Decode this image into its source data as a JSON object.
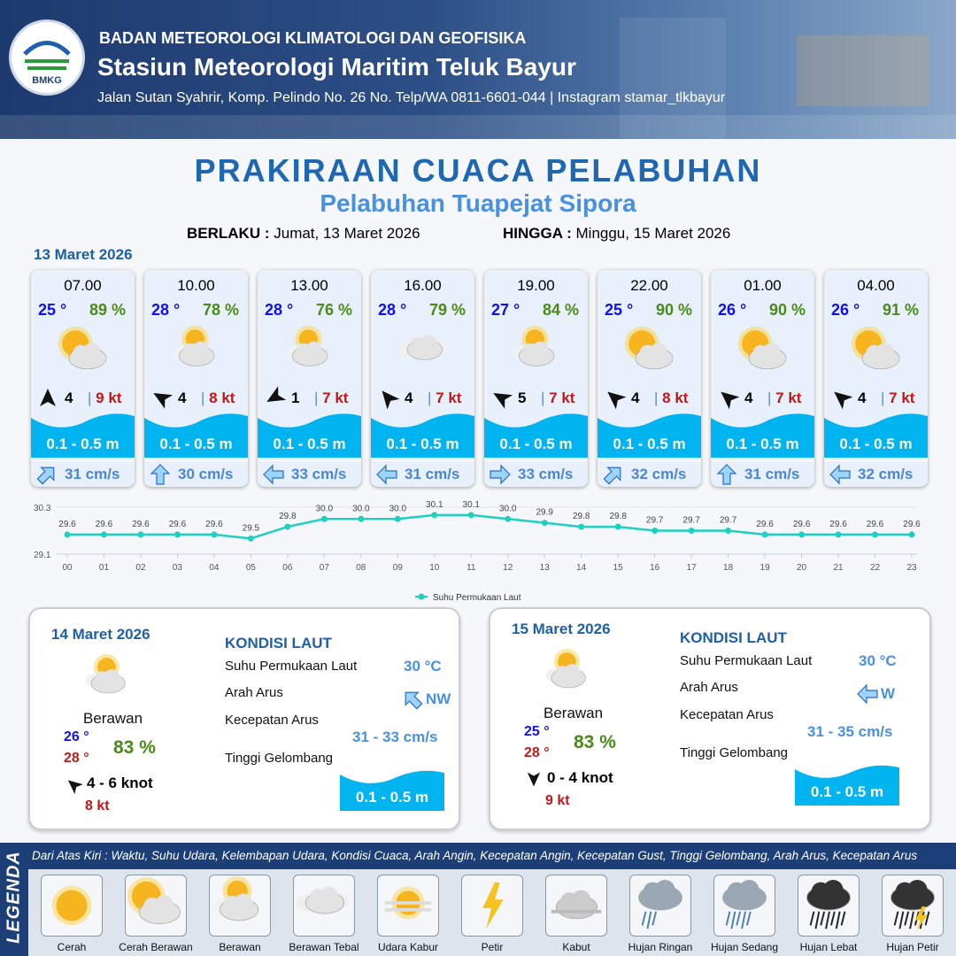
{
  "header": {
    "logo_text": "BMKG",
    "agency": "BADAN METEOROLOGI KLIMATOLOGI DAN GEOFISIKA",
    "station": "Stasiun Meteorologi Maritim Teluk Bayur",
    "address": "Jalan Sutan Syahrir, Komp. Pelindo No. 26 No. Telp/WA 0811-6601-044 | Instagram stamar_tlkbayur"
  },
  "title": "PRAKIRAAN CUACA PELABUHAN",
  "subtitle": "Pelabuhan Tuapejat Sipora",
  "validity": {
    "from_label": "BERLAKU :",
    "from": "Jumat, 13 Maret 2026",
    "to_label": "HINGGA :",
    "to": "Minggu, 15 Maret 2026"
  },
  "day1": {
    "date": "13 Maret 2026"
  },
  "colors": {
    "temp": "#1010ee",
    "humidity": "#4a8a1a",
    "gust": "#c01818",
    "wave": "#00b4f0",
    "current": "#4a86d6",
    "title": "#1f67b1"
  },
  "forecast": [
    {
      "time": "07.00",
      "temp": "25 °",
      "hum": "89 %",
      "weather": "cerah-berawan",
      "wind_dir_deg": 0,
      "wind": "4",
      "gust": "9 kt",
      "wave": "0.1 - 0.5 m",
      "cur_dir_deg": 45,
      "cur": "31 cm/s"
    },
    {
      "time": "10.00",
      "temp": "28 °",
      "hum": "78 %",
      "weather": "berawan",
      "wind_dir_deg": -60,
      "wind": "4",
      "gust": "8 kt",
      "wave": "0.1 - 0.5 m",
      "cur_dir_deg": 0,
      "cur": "30 cm/s"
    },
    {
      "time": "13.00",
      "temp": "28 °",
      "hum": "76 %",
      "weather": "berawan",
      "wind_dir_deg": -120,
      "wind": "1",
      "gust": "7 kt",
      "wave": "0.1 - 0.5 m",
      "cur_dir_deg": 270,
      "cur": "33 cm/s"
    },
    {
      "time": "16.00",
      "temp": "28 °",
      "hum": "79 %",
      "weather": "berawan-tebal",
      "wind_dir_deg": -40,
      "wind": "4",
      "gust": "7 kt",
      "wave": "0.1 - 0.5 m",
      "cur_dir_deg": 270,
      "cur": "31 cm/s"
    },
    {
      "time": "19.00",
      "temp": "27 °",
      "hum": "84 %",
      "weather": "berawan",
      "wind_dir_deg": -60,
      "wind": "5",
      "gust": "7 kt",
      "wave": "0.1 - 0.5 m",
      "cur_dir_deg": 90,
      "cur": "33 cm/s"
    },
    {
      "time": "22.00",
      "temp": "25 °",
      "hum": "90 %",
      "weather": "cerah-berawan",
      "wind_dir_deg": -50,
      "wind": "4",
      "gust": "8 kt",
      "wave": "0.1 - 0.5 m",
      "cur_dir_deg": 45,
      "cur": "32 cm/s"
    },
    {
      "time": "01.00",
      "temp": "26 °",
      "hum": "90 %",
      "weather": "cerah-berawan",
      "wind_dir_deg": -50,
      "wind": "4",
      "gust": "7 kt",
      "wave": "0.1 - 0.5 m",
      "cur_dir_deg": 0,
      "cur": "31 cm/s"
    },
    {
      "time": "04.00",
      "temp": "26 °",
      "hum": "91 %",
      "weather": "cerah-berawan",
      "wind_dir_deg": -50,
      "wind": "4",
      "gust": "7 kt",
      "wave": "0.1 - 0.5 m",
      "cur_dir_deg": 270,
      "cur": "32 cm/s"
    }
  ],
  "chart_data": {
    "type": "line",
    "categories": [
      "00",
      "01",
      "02",
      "03",
      "04",
      "05",
      "06",
      "07",
      "08",
      "09",
      "10",
      "11",
      "12",
      "13",
      "14",
      "15",
      "16",
      "17",
      "18",
      "19",
      "20",
      "21",
      "22",
      "23"
    ],
    "series": [
      {
        "name": "Suhu Permukaan Laut",
        "values": [
          29.6,
          29.6,
          29.6,
          29.6,
          29.6,
          29.5,
          29.8,
          30.0,
          30.0,
          30.0,
          30.1,
          30.1,
          30.0,
          29.9,
          29.8,
          29.8,
          29.7,
          29.7,
          29.7,
          29.6,
          29.6,
          29.6,
          29.6,
          29.6
        ],
        "color": "#1fcfbf"
      }
    ],
    "ylim": [
      29.1,
      30.3
    ],
    "yticks": [
      "29.1",
      "30.3"
    ],
    "grid": true,
    "legend": "bottom"
  },
  "days": [
    {
      "date": "14 Maret 2026",
      "condition": "Berawan",
      "temp_min": "26 °",
      "temp_max": "28 °",
      "hum": "83 %",
      "wind_dir_deg": -50,
      "wind": "4  - 6 knot",
      "gust": "8 kt",
      "kondisi_title": "KONDISI LAUT",
      "sst_label": "Suhu Permukaan Laut",
      "sst": "30 °C",
      "cur_dir_label": "Arah Arus",
      "cur_dir": "NW",
      "cur_dir_deg": -45,
      "cur_speed_label": "Kecepatan Arus",
      "cur_speed": "31 - 33 cm/s",
      "wave_label": "Tinggi Gelombang",
      "wave": "0.1 - 0.5 m"
    },
    {
      "date": "15 Maret 2026",
      "condition": "Berawan",
      "temp_min": "25 °",
      "temp_max": "28 °",
      "hum": "83 %",
      "wind_dir_deg": 180,
      "wind": "0  - 4 knot",
      "gust": "9 kt",
      "kondisi_title": "KONDISI LAUT",
      "sst_label": "Suhu Permukaan Laut",
      "sst": "30 °C",
      "cur_dir_label": "Arah Arus",
      "cur_dir": "W",
      "cur_dir_deg": 270,
      "cur_speed_label": "Kecepatan Arus",
      "cur_speed": "31 - 35 cm/s",
      "wave_label": "Tinggi Gelombang",
      "wave": "0.1 - 0.5 m"
    }
  ],
  "legend": {
    "title": "LEGENDA",
    "description": "Dari Atas Kiri : Waktu, Suhu Udara, Kelembapan Udara, Kondisi Cuaca, Arah Angin, Kecepatan Angin, Kecepatan Gust, Tinggi Gelombang, Arah Arus, Kecepatan Arus",
    "items": [
      {
        "label": "Cerah",
        "icon": "cerah"
      },
      {
        "label": "Cerah Berawan",
        "icon": "cerah-berawan"
      },
      {
        "label": "Berawan",
        "icon": "berawan"
      },
      {
        "label": "Berawan Tebal",
        "icon": "berawan-tebal"
      },
      {
        "label": "Udara Kabur",
        "icon": "udara-kabur"
      },
      {
        "label": "Petir",
        "icon": "petir"
      },
      {
        "label": "Kabut",
        "icon": "kabut"
      },
      {
        "label": "Hujan Ringan",
        "icon": "hujan-ringan"
      },
      {
        "label": "Hujan Sedang",
        "icon": "hujan-sedang"
      },
      {
        "label": "Hujan Lebat",
        "icon": "hujan-lebat"
      },
      {
        "label": "Hujan Petir",
        "icon": "hujan-petir"
      }
    ]
  }
}
